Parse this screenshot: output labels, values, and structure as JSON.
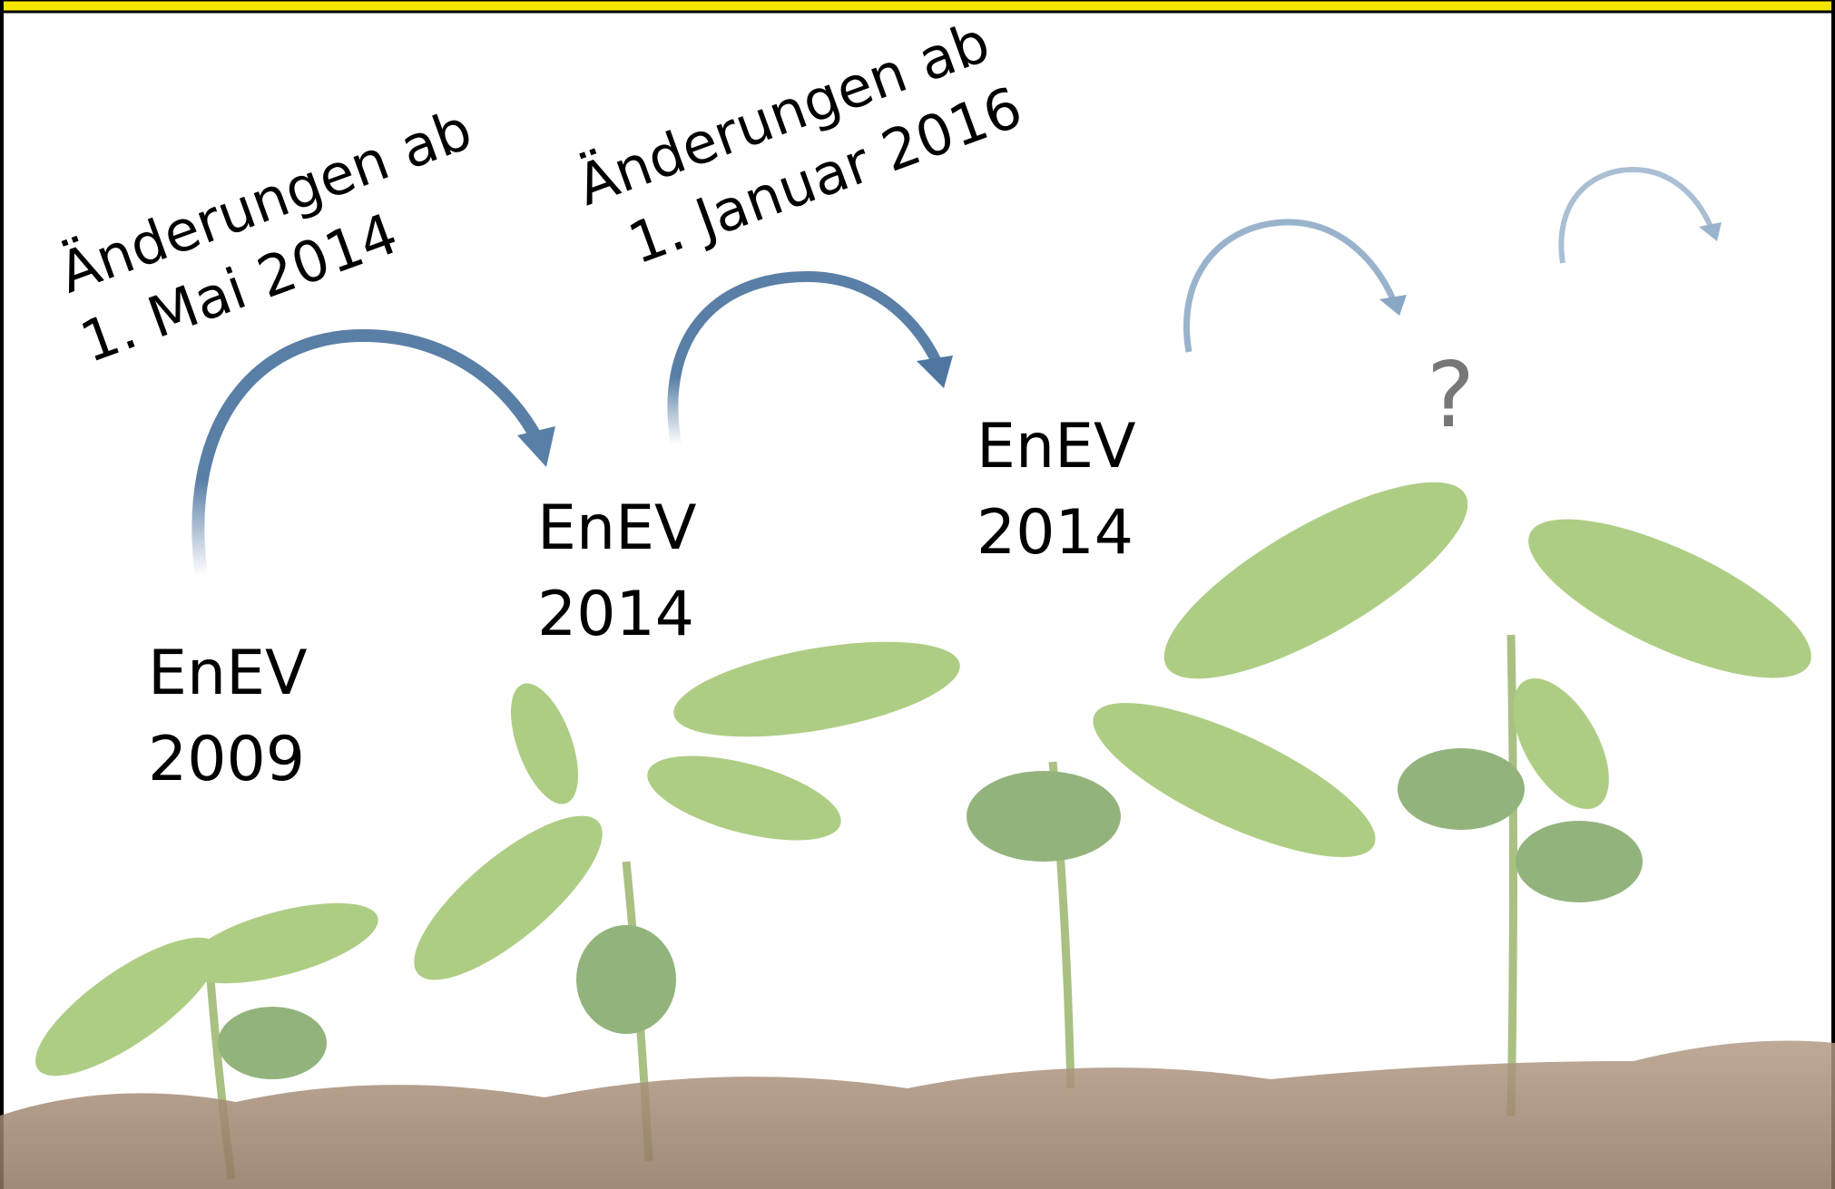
{
  "transitions": [
    {
      "line1": "Änderungen ab",
      "line2": "1. Mai 2014"
    },
    {
      "line1": "Änderungen ab",
      "line2": "1. Januar 2016"
    }
  ],
  "versions": [
    {
      "name": "EnEV",
      "year": "2009"
    },
    {
      "name": "EnEV",
      "year": "2014"
    },
    {
      "name": "EnEV",
      "year": "2014"
    }
  ],
  "unknown": "?"
}
